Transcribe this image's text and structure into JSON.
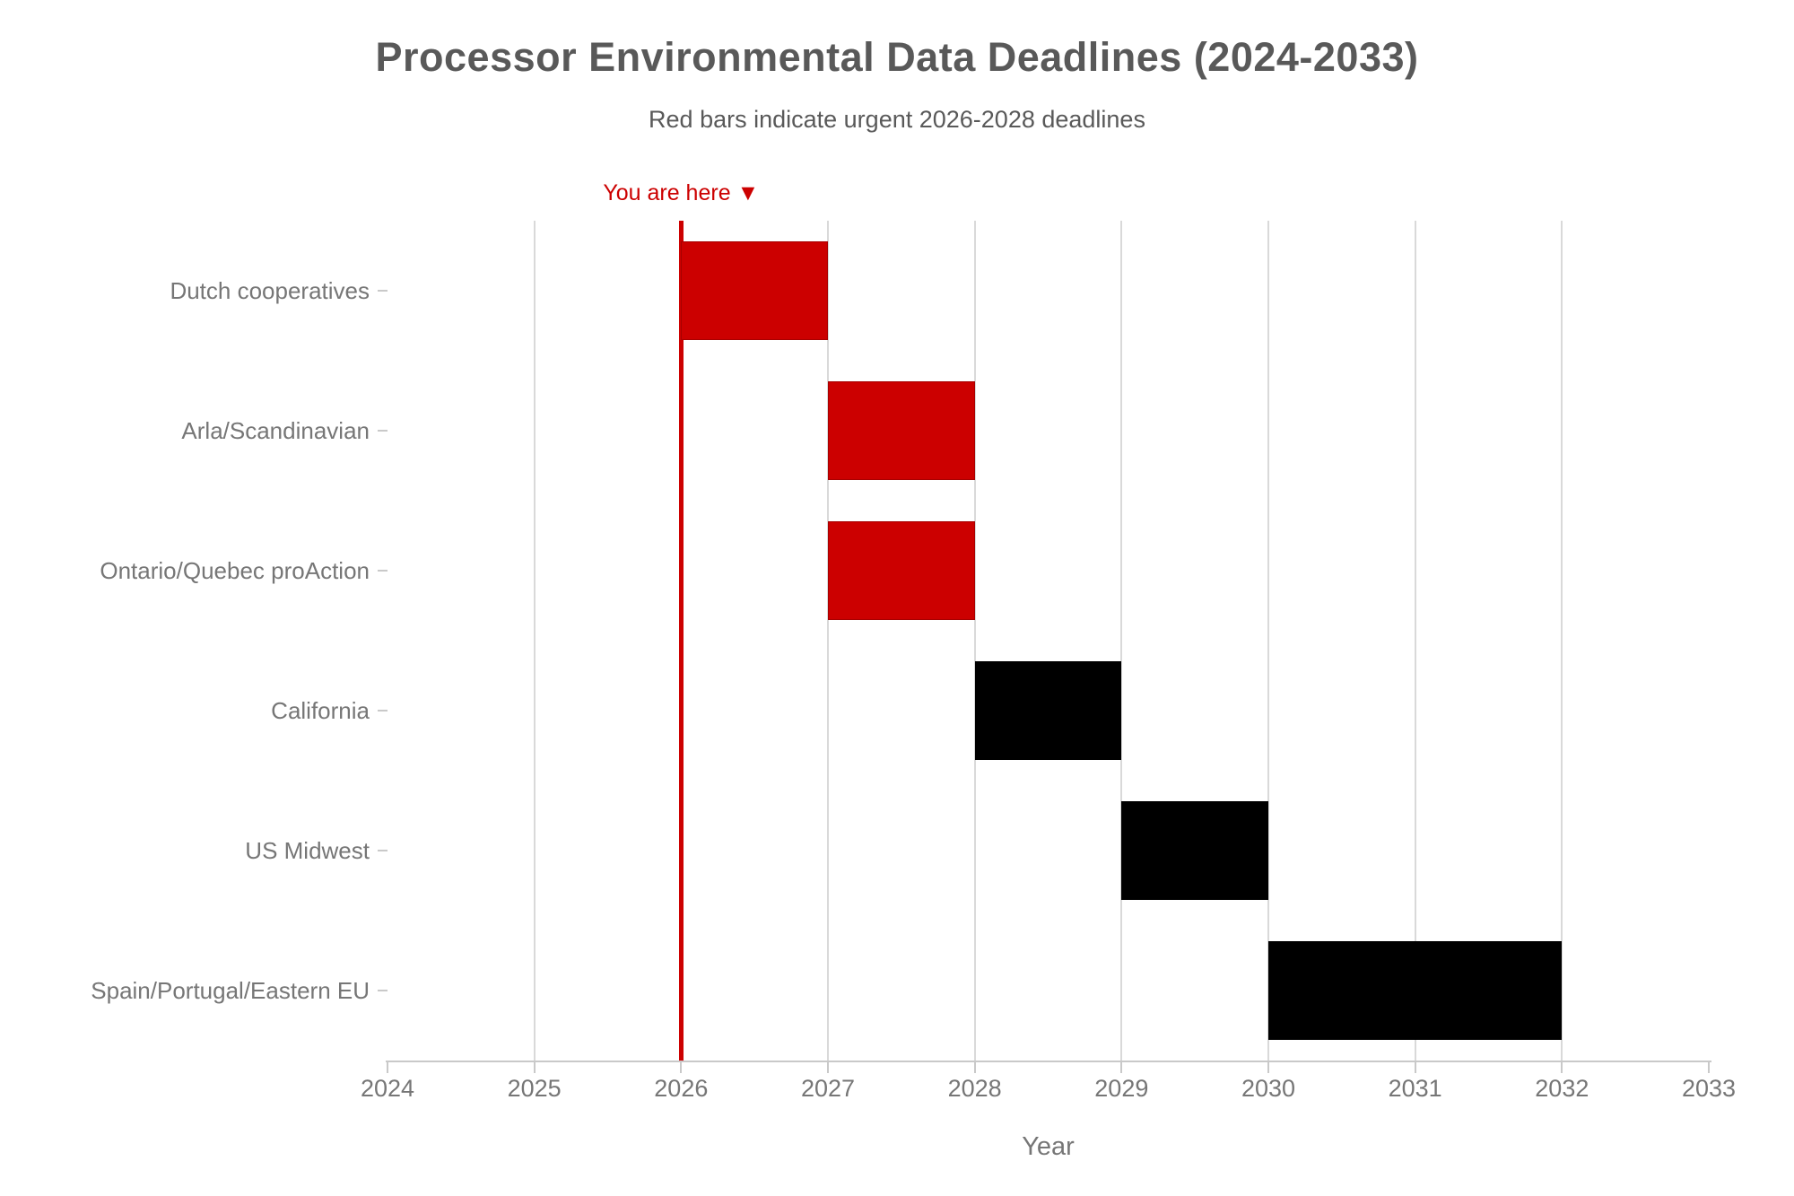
{
  "chart_data": {
    "type": "bar",
    "variant": "gantt-timeline",
    "title": "Processor Environmental Data Deadlines (2024-2033)",
    "subtitle": "Red bars indicate urgent 2026-2028 deadlines",
    "xlabel": "Year",
    "xlim": [
      2024,
      2033
    ],
    "x_ticks": [
      2024,
      2025,
      2026,
      2027,
      2028,
      2029,
      2030,
      2031,
      2032,
      2033
    ],
    "grid_years": [
      2025,
      2026,
      2027,
      2028,
      2029,
      2030,
      2031,
      2032
    ],
    "grid_on": true,
    "categories": [
      "Dutch cooperatives",
      "Arla/Scandinavian",
      "Ontario/Quebec proAction",
      "California",
      "US Midwest",
      "Spain/Portugal/Eastern EU"
    ],
    "bars": [
      {
        "label": "Dutch cooperatives",
        "start": 2026,
        "end": 2027,
        "color": "#cc0000",
        "urgent": true
      },
      {
        "label": "Arla/Scandinavian",
        "start": 2027,
        "end": 2028,
        "color": "#cc0000",
        "urgent": true
      },
      {
        "label": "Ontario/Quebec proAction",
        "start": 2027,
        "end": 2028,
        "color": "#cc0000",
        "urgent": true
      },
      {
        "label": "California",
        "start": 2028,
        "end": 2029,
        "color": "#000000",
        "urgent": false
      },
      {
        "label": "US Midwest",
        "start": 2029,
        "end": 2030,
        "color": "#000000",
        "urgent": false
      },
      {
        "label": "Spain/Portugal/Eastern EU",
        "start": 2030,
        "end": 2032,
        "color": "#000000",
        "urgent": false
      }
    ],
    "now_line": {
      "x": 2026,
      "label": "You are here ▼",
      "color": "#cc0000"
    }
  },
  "colors": {
    "urgent_red": "#cc0000",
    "bar_black": "#000000",
    "grid": "#d9d9d9",
    "axis": "#c9c9c9",
    "text_gray": "#767676",
    "title_gray": "#595959"
  }
}
